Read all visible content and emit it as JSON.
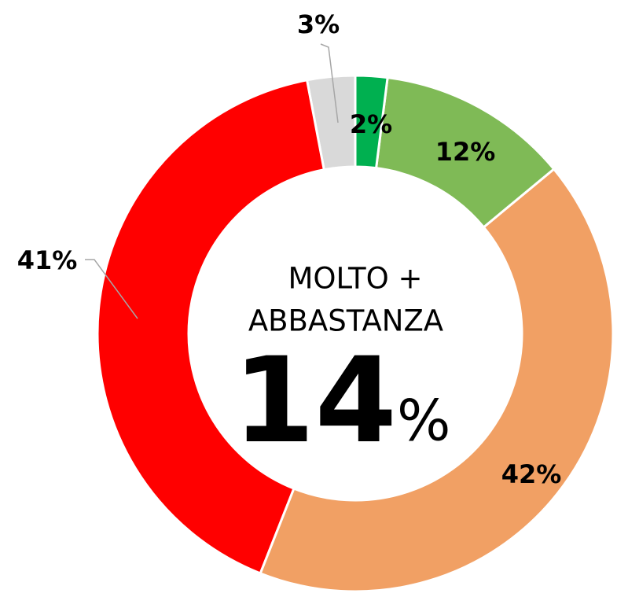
{
  "chart_data": {
    "type": "donut",
    "categories": [
      null,
      null,
      null,
      null,
      null
    ],
    "values": [
      2,
      12,
      42,
      41,
      3
    ],
    "value_labels": [
      "2%",
      "12%",
      "42%",
      "41%",
      "3%"
    ],
    "colors": [
      "#00b050",
      "#7fba56",
      "#f1a064",
      "#ff0000",
      "#d9d9d9"
    ],
    "center_text": [
      "MOLTO +",
      "ABBASTANZA"
    ],
    "center_value": 14,
    "center_unit": "%"
  }
}
